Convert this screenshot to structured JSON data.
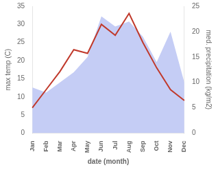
{
  "chart_data": {
    "type": "line",
    "categories": [
      "Jan",
      "Feb",
      "Mar",
      "Apr",
      "May",
      "Jun",
      "Jul",
      "Aug",
      "Sep",
      "Oct",
      "Nov",
      "Dec"
    ],
    "xlabel": "date (month)",
    "ylabel": "max temp (C)",
    "y2label": "med. precipitation (kg/m2)",
    "series": [
      {
        "type": "area",
        "color": "#c5cdf5",
        "axis": "y2",
        "values": [
          9,
          8,
          10,
          12,
          15,
          23,
          21,
          22,
          19,
          14,
          20,
          10
        ]
      },
      {
        "type": "line",
        "color": "#c0392b",
        "values": [
          7,
          12,
          17,
          23,
          22,
          30,
          27,
          33,
          25,
          18,
          12,
          9
        ]
      }
    ],
    "ylim": [
      0,
      35
    ],
    "yticks": [
      0,
      5,
      10,
      15,
      20,
      25,
      30,
      35
    ],
    "y2lim": [
      0,
      25
    ],
    "y2ticks": [
      0,
      5,
      10,
      15,
      20,
      25
    ],
    "grid": false
  }
}
